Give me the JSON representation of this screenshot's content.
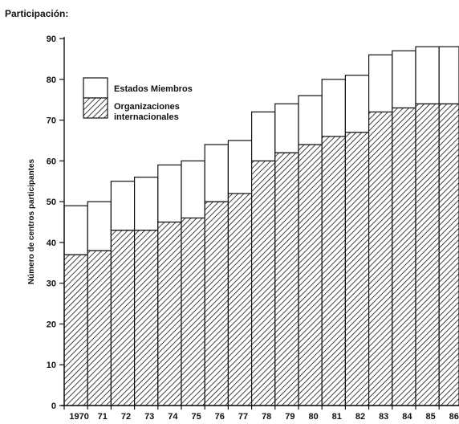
{
  "heading": "Participación:",
  "chart_data": {
    "type": "bar",
    "stacked": true,
    "categories": [
      "1970",
      "71",
      "72",
      "73",
      "74",
      "75",
      "76",
      "77",
      "78",
      "79",
      "80",
      "81",
      "82",
      "83",
      "84",
      "85",
      "86"
    ],
    "series": [
      {
        "name": "Organizaciones internacionales",
        "pattern": "hatched",
        "values": [
          37,
          38,
          43,
          43,
          45,
          46,
          50,
          52,
          60,
          62,
          64,
          66,
          67,
          72,
          73,
          74,
          74
        ]
      },
      {
        "name": "Estados Miembros",
        "pattern": "white",
        "values": [
          12,
          12,
          12,
          13,
          14,
          14,
          14,
          13,
          12,
          12,
          12,
          14,
          14,
          14,
          14,
          14,
          14
        ]
      }
    ],
    "totals": [
      49,
      50,
      55,
      56,
      59,
      60,
      64,
      65,
      72,
      74,
      76,
      80,
      81,
      86,
      87,
      88,
      88
    ],
    "legend": [
      "Estados Miembros",
      "Organizaciones internacionales"
    ],
    "legend_lines": [
      [
        "Estados Miembros"
      ],
      [
        "Organizaciones",
        "internacionales"
      ]
    ],
    "legend_position": "top-left",
    "ylabel": "Número de centros participantes",
    "xlabel": "",
    "ylim": [
      0,
      90
    ],
    "yticks": [
      0,
      10,
      20,
      30,
      40,
      50,
      60,
      70,
      80,
      90
    ],
    "grid": false,
    "colors": {
      "ink": "#111111",
      "fill_top": "#ffffff"
    }
  }
}
